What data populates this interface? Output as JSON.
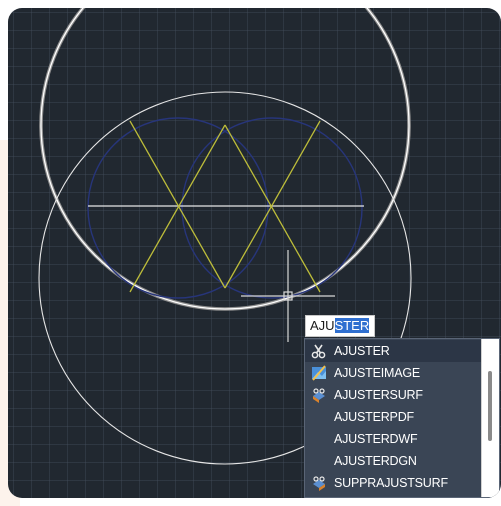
{
  "colors": {
    "canvas_bg": "#212830",
    "highlight_circle": "#e6e6e6",
    "yellow_lines": "#bdbd3a",
    "blue_circles": "#27357a",
    "selection": "#2f6fd0"
  },
  "command_line": {
    "typed": "AJU",
    "autocomplete": "STER"
  },
  "autocomplete_list": {
    "items": [
      {
        "label": "AJUSTER",
        "icon": "scissors-icon"
      },
      {
        "label": "AJUSTEIMAGE",
        "icon": "image-trim-icon"
      },
      {
        "label": "AJUSTERSURF",
        "icon": "surface-trim-icon"
      },
      {
        "label": "AJUSTERPDF",
        "icon": ""
      },
      {
        "label": "AJUSTERDWF",
        "icon": ""
      },
      {
        "label": "AJUSTERDGN",
        "icon": ""
      },
      {
        "label": "SUPPRAJUSTSURF",
        "icon": "surface-untrim-icon"
      }
    ]
  }
}
